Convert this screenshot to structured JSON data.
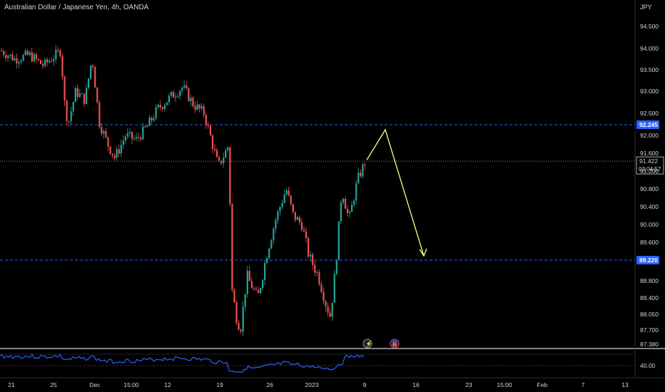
{
  "header": {
    "title": "Australian Dollar / Japanese Yen, 4h, OANDA",
    "currency": "JPY"
  },
  "chart_data": {
    "type": "candlestick",
    "y_ticks": [
      "94.500",
      "94.000",
      "93.500",
      "93.000",
      "92.500",
      "92.000",
      "91.600",
      "91.200",
      "90.800",
      "90.400",
      "90.000",
      "89.600",
      "88.800",
      "88.400",
      "88.050",
      "87.700",
      "87.380"
    ],
    "x_ticks": [
      "21",
      "25",
      "Dec",
      "15:00",
      "12",
      "19",
      "26",
      "2023",
      "9",
      "16",
      "23",
      "15:00",
      "Feb",
      "7",
      "13"
    ],
    "levels": [
      {
        "value": 92.245,
        "label": "92.245",
        "color": "#2962ff",
        "style": "dashed"
      },
      {
        "value": 89.22,
        "label": "89.220",
        "color": "#2962ff",
        "style": "dashed"
      }
    ],
    "current_price": {
      "value": 91.422,
      "label": "91.422",
      "countdown": "03:04:57"
    },
    "ylim": [
      87.38,
      94.8
    ],
    "projection": {
      "color": "#ffff80",
      "points": [
        {
          "bar": "last",
          "price": 91.45
        },
        {
          "bar": "last+7",
          "price": 92.1
        },
        {
          "bar": "last+20",
          "price": 89.22
        }
      ]
    },
    "indicator": {
      "type": "line",
      "color": "#2962ff",
      "ylabel": "40.00",
      "series_note": "oscillator pane"
    },
    "up_color": "#26a69a",
    "down_color": "#ef5350"
  },
  "badges": {
    "lightning_icon": "lightning-icon",
    "flag_icon": "flag-icon"
  }
}
